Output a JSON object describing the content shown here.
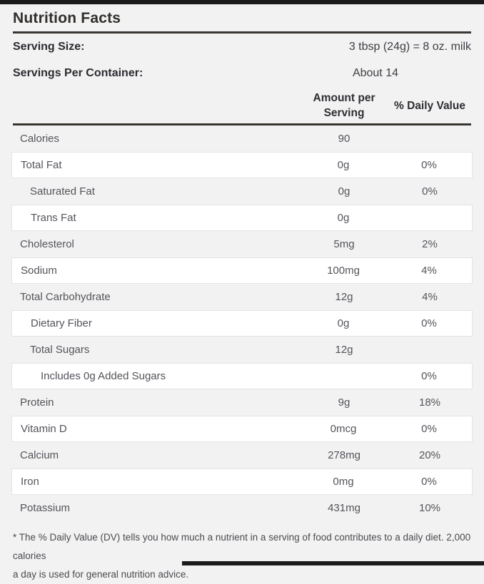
{
  "page": {
    "background": "#f2f2f2",
    "bar_color": "#1b1b1b",
    "rule_color": "#3a3733"
  },
  "header": {
    "title": "Nutrition Facts",
    "serving_size_label": "Serving Size:",
    "serving_size_value": "3 tbsp (24g) = 8 oz. milk",
    "servings_label": "Servings Per Container:",
    "servings_value": "About 14"
  },
  "table": {
    "col_amount": "Amount per Serving",
    "col_dv": "% Daily Value",
    "rows": [
      {
        "label": "Calories",
        "amount": "90",
        "dv": "",
        "indent": 0
      },
      {
        "label": "Total Fat",
        "amount": "0g",
        "dv": "0%",
        "indent": 0
      },
      {
        "label": "Saturated Fat",
        "amount": "0g",
        "dv": "0%",
        "indent": 1
      },
      {
        "label": "Trans Fat",
        "amount": "0g",
        "dv": "",
        "indent": 1
      },
      {
        "label": "Cholesterol",
        "amount": "5mg",
        "dv": "2%",
        "indent": 0
      },
      {
        "label": "Sodium",
        "amount": "100mg",
        "dv": "4%",
        "indent": 0
      },
      {
        "label": "Total Carbohydrate",
        "amount": "12g",
        "dv": "4%",
        "indent": 0
      },
      {
        "label": "Dietary Fiber",
        "amount": "0g",
        "dv": "0%",
        "indent": 1
      },
      {
        "label": "Total Sugars",
        "amount": "12g",
        "dv": "",
        "indent": 1
      },
      {
        "label": "Includes 0g Added Sugars",
        "amount": "",
        "dv": "0%",
        "indent": 2
      },
      {
        "label": "Protein",
        "amount": "9g",
        "dv": "18%",
        "indent": 0
      },
      {
        "label": "Vitamin D",
        "amount": "0mcg",
        "dv": "0%",
        "indent": 0
      },
      {
        "label": "Calcium",
        "amount": "278mg",
        "dv": "20%",
        "indent": 0
      },
      {
        "label": "Iron",
        "amount": "0mg",
        "dv": "0%",
        "indent": 0
      },
      {
        "label": "Potassium",
        "amount": "431mg",
        "dv": "10%",
        "indent": 0
      }
    ]
  },
  "footnote_lines": [
    "* The % Daily Value (DV) tells you how much a nutrient in a serving of food contributes to a daily diet. 2,000 calories",
    "a day is used for general nutrition advice."
  ]
}
